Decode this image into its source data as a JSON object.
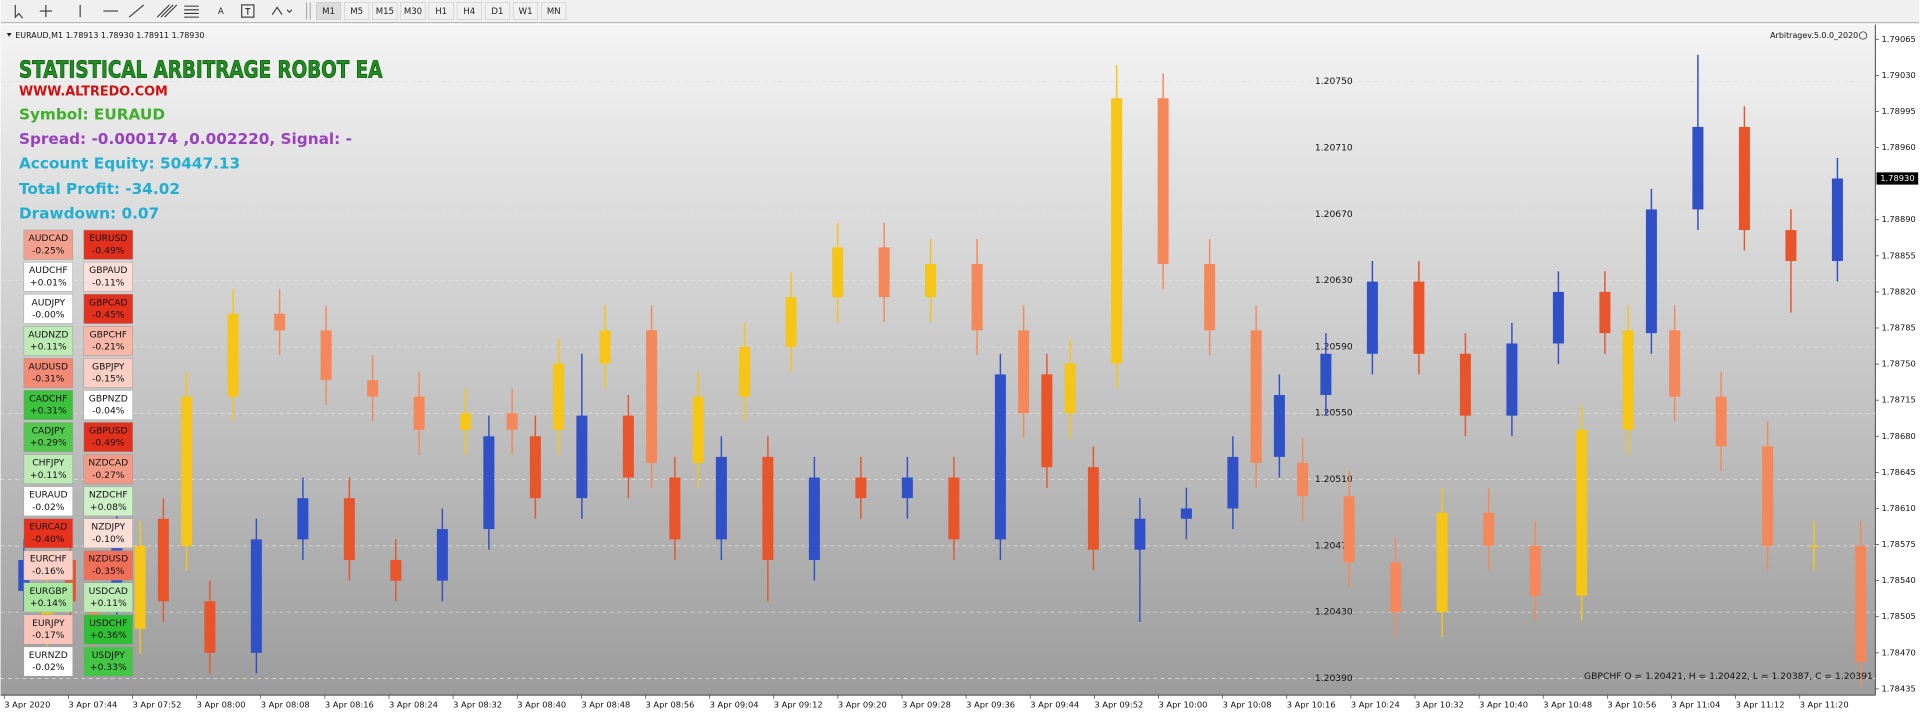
{
  "toolbar": {
    "text_tool": "A",
    "timeframes": [
      "M1",
      "M5",
      "M15",
      "M30",
      "H1",
      "H4",
      "D1",
      "W1",
      "MN"
    ]
  },
  "chart": {
    "info": "EURAUD,M1  1.78913 1.78930 1.78911 1.78930",
    "expert": "Arbitragev.5.0.0_2020",
    "ohlc_info": "GBPCHF O = 1.20421, H = 1.20422, L = 1.20387, C = 1.20391",
    "title": "STATISTICAL ARBITRAGE ROBOT EA",
    "website": "WWW.ALTREDO.COM",
    "symbol": "Symbol: EURAUD",
    "spread": "Spread: -0.000174 ,0.002220, Signal: -",
    "equity": "Account Equity: 50447.13",
    "profit": "Total Profit: -34.02",
    "drawdown": "Drawdown: 0.07",
    "pairs": [
      [
        {
          "pair": "AUDCAD",
          "change": "-0.25%",
          "color": "#f4a08f"
        },
        {
          "pair": "AUDCHF",
          "change": "+0.01%",
          "color": "#ffffff"
        },
        {
          "pair": "AUDJPY",
          "change": "-0.00%",
          "color": "#ffffff"
        },
        {
          "pair": "AUDNZD",
          "change": "+0.11%",
          "color": "#bdebb4"
        },
        {
          "pair": "AUDUSD",
          "change": "-0.31%",
          "color": "#f28a76"
        },
        {
          "pair": "CADCHF",
          "change": "+0.31%",
          "color": "#3cc23c"
        },
        {
          "pair": "CADJPY",
          "change": "+0.29%",
          "color": "#52c94c"
        },
        {
          "pair": "CHFJPY",
          "change": "+0.11%",
          "color": "#bdebb4"
        },
        {
          "pair": "EURAUD",
          "change": "-0.02%",
          "color": "#ffffff"
        },
        {
          "pair": "EURCAD",
          "change": "-0.40%",
          "color": "#e8321e"
        },
        {
          "pair": "EURCHF",
          "change": "-0.16%",
          "color": "#f9cfc6"
        },
        {
          "pair": "EURGBP",
          "change": "+0.14%",
          "color": "#a9e6a0"
        },
        {
          "pair": "EURJPY",
          "change": "-0.17%",
          "color": "#f9c3b8"
        },
        {
          "pair": "EURNZD",
          "change": "-0.02%",
          "color": "#ffffff"
        }
      ],
      [
        {
          "pair": "EURUSD",
          "change": "-0.49%",
          "color": "#e2301c"
        },
        {
          "pair": "GBPAUD",
          "change": "-0.11%",
          "color": "#fbe0da"
        },
        {
          "pair": "GBPCAD",
          "change": "-0.45%",
          "color": "#e4311d"
        },
        {
          "pair": "GBPCHF",
          "change": "-0.21%",
          "color": "#f7b7a9"
        },
        {
          "pair": "GBPJPY",
          "change": "-0.15%",
          "color": "#f9cfc6"
        },
        {
          "pair": "GBPNZD",
          "change": "-0.04%",
          "color": "#ffffff"
        },
        {
          "pair": "GBPUSD",
          "change": "-0.49%",
          "color": "#e2301c"
        },
        {
          "pair": "NZDCAD",
          "change": "-0.27%",
          "color": "#f39a87"
        },
        {
          "pair": "NZDCHF",
          "change": "+0.08%",
          "color": "#cdf0c6"
        },
        {
          "pair": "NZDJPY",
          "change": "-0.10%",
          "color": "#fbe0da"
        },
        {
          "pair": "NZDUSD",
          "change": "-0.35%",
          "color": "#ef6f59"
        },
        {
          "pair": "USDCAD",
          "change": "+0.11%",
          "color": "#bdebb4"
        },
        {
          "pair": "USDCHF",
          "change": "+0.36%",
          "color": "#2fbf33"
        },
        {
          "pair": "USDJPY",
          "change": "+0.33%",
          "color": "#45c545"
        }
      ]
    ],
    "ylim": [
      1.78429,
      1.79077
    ],
    "yticks": [
      1.78435,
      {
        "value": 1.7847,
        "label": "1.78470"
      },
      1.78505,
      {
        "value": 1.7854,
        "label": "1.78540"
      },
      1.78575,
      {
        "value": 1.7861,
        "label": "1.78610"
      },
      1.78645,
      {
        "value": 1.7868,
        "label": "1.78680"
      },
      1.78715,
      {
        "value": 1.7875,
        "label": "1.78750"
      },
      1.78785,
      {
        "value": 1.7882,
        "label": "1.78820"
      },
      1.78855,
      {
        "value": 1.7889,
        "label": "1.78890"
      },
      {
        "value": 1.7896,
        "label": "1.78960"
      },
      1.78995,
      {
        "value": 1.7903,
        "label": "1.79030"
      },
      1.79065
    ],
    "y2lim": [
      1.2038,
      1.20783
    ],
    "y2ticks": [
      {
        "value": 1.2075,
        "label": "1.20750"
      },
      {
        "value": 1.2071,
        "label": "1.20710"
      },
      {
        "value": 1.2067,
        "label": "1.20670"
      },
      {
        "value": 1.2063,
        "label": "1.20630"
      },
      {
        "value": 1.2059,
        "label": "1.20590"
      },
      {
        "value": 1.2055,
        "label": "1.20550"
      },
      {
        "value": 1.2051,
        "label": "1.20510"
      },
      {
        "value": 1.2047,
        "label": "1.20470"
      },
      {
        "value": 1.2043,
        "label": "1.20430"
      },
      {
        "value": 1.2039,
        "label": "1.20390"
      }
    ],
    "grid": true,
    "current_price": {
      "value": 1.7893,
      "label": "1.78930"
    },
    "xticks": [
      "3 Apr 2020",
      "3 Apr 07:44",
      "3 Apr 07:52",
      "3 Apr 08:00",
      "3 Apr 08:08",
      "3 Apr 08:16",
      "3 Apr 08:24",
      "3 Apr 08:32",
      "3 Apr 08:40",
      "3 Apr 08:48",
      "3 Apr 08:56",
      "3 Apr 09:04",
      "3 Apr 09:12",
      "3 Apr 09:20",
      "3 Apr 09:28",
      "3 Apr 09:36",
      "3 Apr 09:44",
      "3 Apr 09:52",
      "3 Apr 10:00",
      "3 Apr 10:08",
      "3 Apr 10:16",
      "3 Apr 10:24",
      "3 Apr 10:32",
      "3 Apr 10:40",
      "3 Apr 10:48",
      "3 Apr 10:56",
      "3 Apr 11:04",
      "3 Apr 11:12",
      "3 Apr 11:20"
    ],
    "series": [
      {
        "type": "candlestick",
        "axis": "y2",
        "up_color": "#f5c518",
        "down_color": "#f5885a",
        "open": [
          1.2042,
          1.2044,
          1.2042,
          1.2047,
          1.2056,
          1.2061,
          1.206,
          1.2057,
          1.2056,
          1.2054,
          1.2055,
          1.2054,
          1.2058,
          1.206,
          1.2052,
          1.2056,
          1.2059,
          1.2062,
          1.2065,
          1.2062,
          1.2064,
          1.206,
          1.2055,
          1.2058,
          1.2074,
          1.2064,
          1.206,
          1.2052,
          1.205,
          1.2046,
          1.2043,
          1.2049,
          1.2047,
          1.2044,
          1.2054,
          1.206,
          1.2056,
          1.2053,
          1.2047,
          1.2047
        ],
        "high": [
          1.20455,
          1.20455,
          1.20485,
          1.20575,
          1.20625,
          1.20625,
          1.20615,
          1.20585,
          1.20575,
          1.20565,
          1.20565,
          1.20595,
          1.20615,
          1.20615,
          1.20575,
          1.20605,
          1.20635,
          1.20665,
          1.20665,
          1.20655,
          1.20655,
          1.20615,
          1.20595,
          1.2076,
          1.20755,
          1.20655,
          1.20615,
          1.20535,
          1.20515,
          1.20475,
          1.20505,
          1.20505,
          1.20485,
          1.20555,
          1.20615,
          1.20615,
          1.20575,
          1.20545,
          1.20485,
          1.20485
        ],
        "low": [
          1.20405,
          1.20405,
          1.20405,
          1.20455,
          1.20545,
          1.20585,
          1.20555,
          1.20545,
          1.20525,
          1.20525,
          1.20525,
          1.20525,
          1.20565,
          1.20505,
          1.20505,
          1.20545,
          1.20575,
          1.20605,
          1.20605,
          1.20605,
          1.20585,
          1.20535,
          1.20535,
          1.20565,
          1.20625,
          1.20585,
          1.20505,
          1.20485,
          1.20445,
          1.20415,
          1.20415,
          1.20455,
          1.20425,
          1.20425,
          1.20525,
          1.20545,
          1.20515,
          1.20455,
          1.20455,
          1.20385
        ],
        "close": [
          1.2044,
          1.2042,
          1.2047,
          1.2056,
          1.2061,
          1.206,
          1.2057,
          1.2056,
          1.2054,
          1.2055,
          1.2054,
          1.2058,
          1.206,
          1.2052,
          1.2056,
          1.2059,
          1.2062,
          1.2065,
          1.2062,
          1.2064,
          1.206,
          1.2055,
          1.2058,
          1.2074,
          1.2064,
          1.206,
          1.2052,
          1.205,
          1.2046,
          1.2043,
          1.2049,
          1.2047,
          1.2044,
          1.2054,
          1.206,
          1.2056,
          1.2053,
          1.2047,
          1.2047,
          1.204
        ]
      },
      {
        "type": "candlestick",
        "axis": "y",
        "up_color": "#3050c8",
        "down_color": "#e8552a",
        "open": [
          1.7853,
          1.7856,
          1.7852,
          1.786,
          1.7852,
          1.7847,
          1.7858,
          1.7862,
          1.7856,
          1.7854,
          1.7859,
          1.7868,
          1.7862,
          1.787,
          1.7864,
          1.7858,
          1.7866,
          1.7856,
          1.7864,
          1.7862,
          1.7864,
          1.7858,
          1.7874,
          1.7865,
          1.7857,
          1.786,
          1.7861,
          1.7866,
          1.7872,
          1.7876,
          1.7883,
          1.7876,
          1.787,
          1.7877,
          1.7882,
          1.7878,
          1.789,
          1.7898,
          1.7888,
          1.7885
        ],
        "high": [
          1.7858,
          1.7858,
          1.7862,
          1.7862,
          1.7854,
          1.786,
          1.7864,
          1.7864,
          1.7858,
          1.7861,
          1.787,
          1.787,
          1.7876,
          1.7872,
          1.7866,
          1.7868,
          1.7868,
          1.7866,
          1.7866,
          1.7866,
          1.7866,
          1.7876,
          1.7876,
          1.7867,
          1.7862,
          1.7863,
          1.7868,
          1.7874,
          1.7878,
          1.7885,
          1.7885,
          1.7878,
          1.7879,
          1.7884,
          1.7884,
          1.7892,
          1.7905,
          1.79,
          1.789,
          1.7895
        ],
        "low": [
          1.7851,
          1.785,
          1.785,
          1.785,
          1.7845,
          1.7845,
          1.7856,
          1.7854,
          1.7852,
          1.7852,
          1.7857,
          1.786,
          1.786,
          1.7862,
          1.7856,
          1.7856,
          1.7852,
          1.7854,
          1.786,
          1.786,
          1.7856,
          1.7856,
          1.7863,
          1.7855,
          1.785,
          1.7858,
          1.7859,
          1.7864,
          1.787,
          1.7874,
          1.7874,
          1.7868,
          1.7868,
          1.7875,
          1.7876,
          1.7876,
          1.7888,
          1.7886,
          1.788,
          1.7883
        ],
        "close": [
          1.7856,
          1.7852,
          1.786,
          1.7852,
          1.7847,
          1.7858,
          1.7862,
          1.7856,
          1.7854,
          1.7859,
          1.7868,
          1.7862,
          1.787,
          1.7864,
          1.7858,
          1.7866,
          1.7856,
          1.7864,
          1.7862,
          1.7864,
          1.7858,
          1.7874,
          1.7865,
          1.7857,
          1.786,
          1.7861,
          1.7866,
          1.7872,
          1.7876,
          1.7883,
          1.7876,
          1.787,
          1.7877,
          1.7882,
          1.7878,
          1.789,
          1.7898,
          1.7888,
          1.7885,
          1.7893
        ]
      }
    ]
  }
}
